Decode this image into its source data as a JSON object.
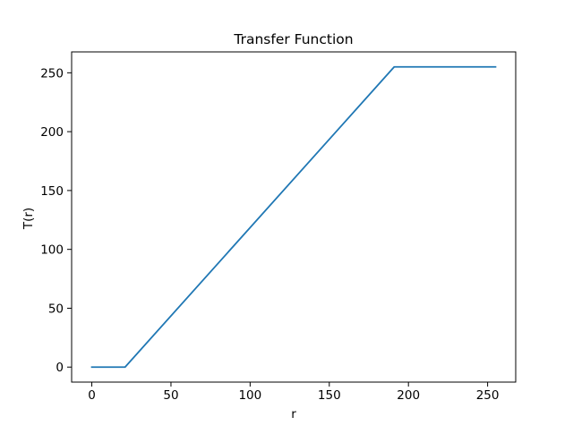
{
  "chart_data": {
    "type": "line",
    "title": "Transfer Function",
    "xlabel": "r",
    "ylabel": "T(r)",
    "xlim": [
      -12.75,
      267.75
    ],
    "ylim": [
      -12.75,
      267.75
    ],
    "xticks": [
      0,
      50,
      100,
      150,
      200,
      250
    ],
    "yticks": [
      0,
      50,
      100,
      150,
      200,
      250
    ],
    "grid": false,
    "legend": "none",
    "colors": {
      "line": "#1f77b4",
      "axes": "#000000",
      "background": "#ffffff"
    },
    "series": [
      {
        "x": [
          0,
          21,
          191,
          255
        ],
        "y": [
          0,
          0,
          255,
          255
        ]
      }
    ]
  }
}
